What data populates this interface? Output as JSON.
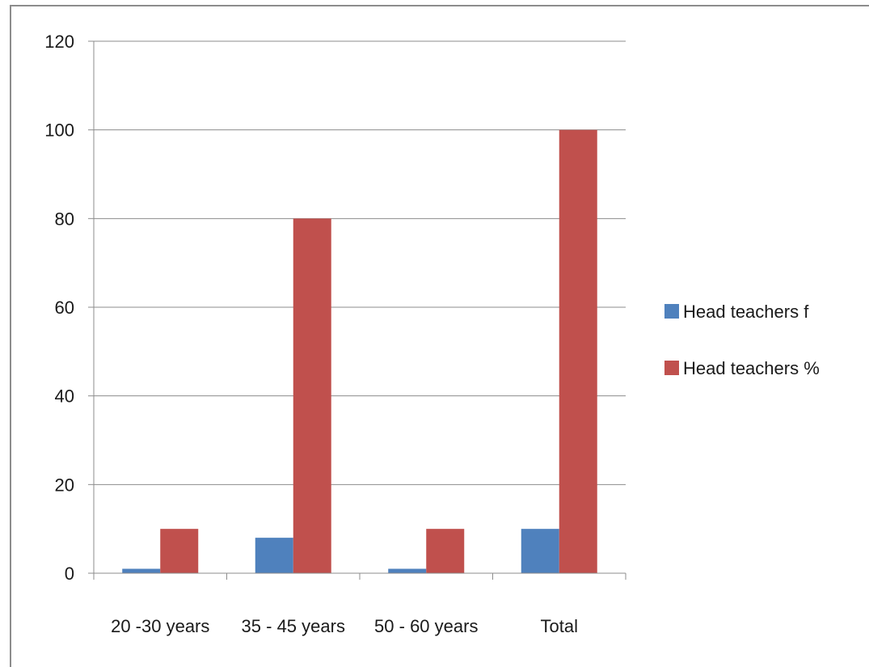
{
  "chart_data": {
    "type": "bar",
    "title": "",
    "xlabel": "",
    "ylabel": "",
    "categories": [
      "20 -30 years",
      "35 - 45 years",
      "50 - 60 years",
      "Total"
    ],
    "series": [
      {
        "name": "Head teachers f",
        "values": [
          1,
          8,
          1,
          10
        ],
        "color": "#4f81bd"
      },
      {
        "name": "Head teachers %",
        "values": [
          10,
          80,
          10,
          100
        ],
        "color": "#c0504d"
      }
    ],
    "ylim": [
      0,
      120
    ],
    "yticks": [
      0,
      20,
      40,
      60,
      80,
      100,
      120
    ],
    "grid": true,
    "legend_position": "right"
  }
}
